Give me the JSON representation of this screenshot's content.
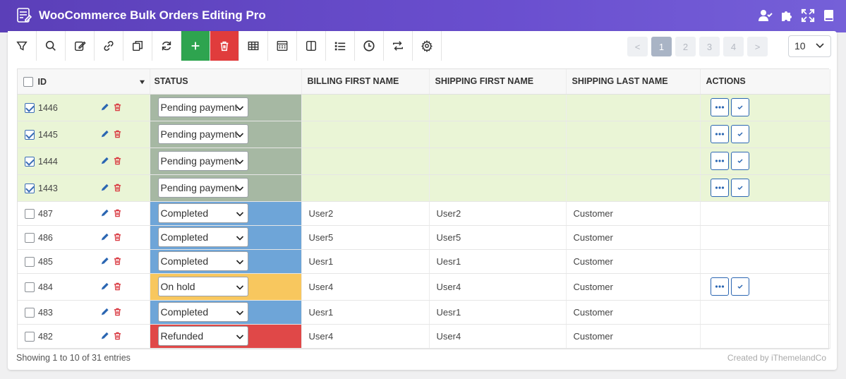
{
  "header": {
    "title": "WooCommerce Bulk Orders Editing Pro"
  },
  "pagination": {
    "prev": "<",
    "pages": [
      "1",
      "2",
      "3",
      "4"
    ],
    "next": ">",
    "per_page": "10"
  },
  "table": {
    "columns": {
      "id": "ID",
      "status": "STATUS",
      "billing_first_name": "BILLING FIRST NAME",
      "shipping_first_name": "SHIPPING FIRST NAME",
      "shipping_last_name": "SHIPPING LAST NAME",
      "actions": "ACTIONS"
    },
    "rows": [
      {
        "id": "1446",
        "status": "Pending payment",
        "billing_first_name": "",
        "shipping_first_name": "",
        "shipping_last_name": ""
      },
      {
        "id": "1445",
        "status": "Pending payment",
        "billing_first_name": "",
        "shipping_first_name": "",
        "shipping_last_name": ""
      },
      {
        "id": "1444",
        "status": "Pending payment",
        "billing_first_name": "",
        "shipping_first_name": "",
        "shipping_last_name": ""
      },
      {
        "id": "1443",
        "status": "Pending payment",
        "billing_first_name": "",
        "shipping_first_name": "",
        "shipping_last_name": ""
      },
      {
        "id": "487",
        "status": "Completed",
        "billing_first_name": "User2",
        "shipping_first_name": "User2",
        "shipping_last_name": "Customer"
      },
      {
        "id": "486",
        "status": "Completed",
        "billing_first_name": "User5",
        "shipping_first_name": "User5",
        "shipping_last_name": "Customer"
      },
      {
        "id": "485",
        "status": "Completed",
        "billing_first_name": "Uesr1",
        "shipping_first_name": "Uesr1",
        "shipping_last_name": "Customer"
      },
      {
        "id": "484",
        "status": "On hold",
        "billing_first_name": "User4",
        "shipping_first_name": "User4",
        "shipping_last_name": "Customer"
      },
      {
        "id": "483",
        "status": "Completed",
        "billing_first_name": "Uesr1",
        "shipping_first_name": "Uesr1",
        "shipping_last_name": "Customer"
      },
      {
        "id": "482",
        "status": "Refunded",
        "billing_first_name": "User4",
        "shipping_first_name": "User4",
        "shipping_last_name": "Customer"
      }
    ]
  },
  "footer": {
    "entries": "Showing 1 to 10 of 31 entries",
    "credit": "Created by iThemelandCo"
  },
  "colors": {
    "header": "#5b3fb8",
    "add_button": "#2ea44f",
    "delete_button": "#e03c3c",
    "selected_row": "#eaf5d6",
    "selected_status": "#a6b8a3",
    "completed": "#6ea5d8",
    "on_hold": "#f8c75e",
    "refunded": "#e04848"
  }
}
